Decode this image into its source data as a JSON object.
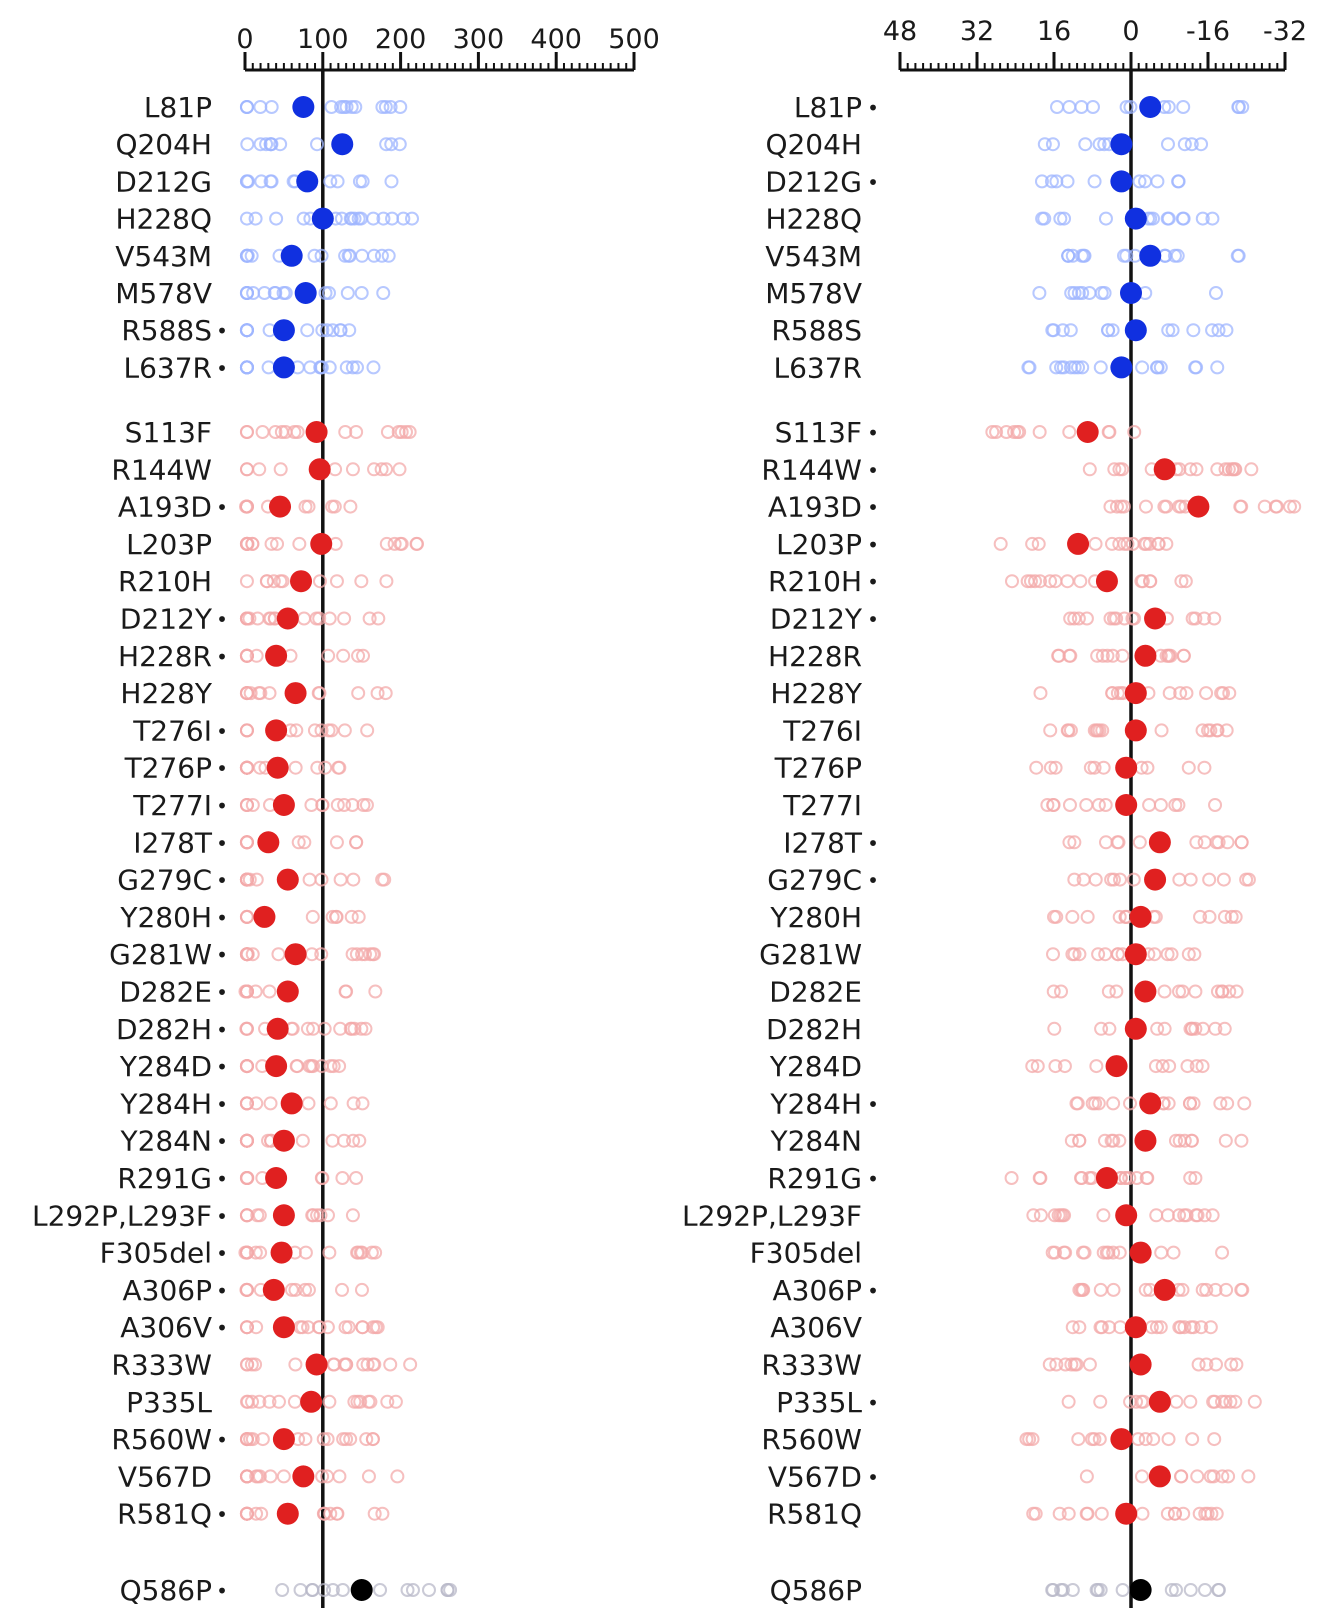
{
  "chart_data": [
    {
      "type": "scatter",
      "orientation": "horizontal",
      "x_ticks": [
        0,
        100,
        200,
        300,
        400,
        500
      ],
      "xlim": [
        0,
        500
      ],
      "reference_value": 100,
      "point_colors": {
        "benign": "#1030e0",
        "pathogenic": "#e02020",
        "control": "#000000"
      },
      "rows": [
        {
          "label": "L81P",
          "star": false,
          "value": 75,
          "group": "benign"
        },
        {
          "label": "Q204H",
          "star": false,
          "value": 125,
          "group": "benign"
        },
        {
          "label": "D212G",
          "star": false,
          "value": 80,
          "group": "benign"
        },
        {
          "label": "H228Q",
          "star": false,
          "value": 100,
          "group": "benign"
        },
        {
          "label": "V543M",
          "star": false,
          "value": 60,
          "group": "benign"
        },
        {
          "label": "M578V",
          "star": false,
          "value": 78,
          "group": "benign"
        },
        {
          "label": "R588S",
          "star": true,
          "value": 50,
          "group": "benign"
        },
        {
          "label": "L637R",
          "star": true,
          "value": 50,
          "group": "benign"
        },
        {
          "label": "S113F",
          "star": false,
          "value": 92,
          "group": "pathogenic"
        },
        {
          "label": "R144W",
          "star": false,
          "value": 96,
          "group": "pathogenic"
        },
        {
          "label": "A193D",
          "star": true,
          "value": 45,
          "group": "pathogenic"
        },
        {
          "label": "L203P",
          "star": false,
          "value": 98,
          "group": "pathogenic"
        },
        {
          "label": "R210H",
          "star": false,
          "value": 72,
          "group": "pathogenic"
        },
        {
          "label": "D212Y",
          "star": true,
          "value": 55,
          "group": "pathogenic"
        },
        {
          "label": "H228R",
          "star": true,
          "value": 40,
          "group": "pathogenic"
        },
        {
          "label": "H228Y",
          "star": false,
          "value": 65,
          "group": "pathogenic"
        },
        {
          "label": "T276I",
          "star": true,
          "value": 40,
          "group": "pathogenic"
        },
        {
          "label": "T276P",
          "star": true,
          "value": 42,
          "group": "pathogenic"
        },
        {
          "label": "T277I",
          "star": true,
          "value": 50,
          "group": "pathogenic"
        },
        {
          "label": "I278T",
          "star": true,
          "value": 30,
          "group": "pathogenic"
        },
        {
          "label": "G279C",
          "star": true,
          "value": 55,
          "group": "pathogenic"
        },
        {
          "label": "Y280H",
          "star": true,
          "value": 25,
          "group": "pathogenic"
        },
        {
          "label": "G281W",
          "star": true,
          "value": 65,
          "group": "pathogenic"
        },
        {
          "label": "D282E",
          "star": true,
          "value": 55,
          "group": "pathogenic"
        },
        {
          "label": "D282H",
          "star": true,
          "value": 42,
          "group": "pathogenic"
        },
        {
          "label": "Y284D",
          "star": true,
          "value": 40,
          "group": "pathogenic"
        },
        {
          "label": "Y284H",
          "star": true,
          "value": 60,
          "group": "pathogenic"
        },
        {
          "label": "Y284N",
          "star": true,
          "value": 50,
          "group": "pathogenic"
        },
        {
          "label": "R291G",
          "star": true,
          "value": 40,
          "group": "pathogenic"
        },
        {
          "label": "L292P,L293F",
          "star": true,
          "value": 50,
          "group": "pathogenic"
        },
        {
          "label": "F305del",
          "star": true,
          "value": 47,
          "group": "pathogenic"
        },
        {
          "label": "A306P",
          "star": true,
          "value": 37,
          "group": "pathogenic"
        },
        {
          "label": "A306V",
          "star": true,
          "value": 50,
          "group": "pathogenic"
        },
        {
          "label": "R333W",
          "star": false,
          "value": 92,
          "group": "pathogenic"
        },
        {
          "label": "P335L",
          "star": false,
          "value": 85,
          "group": "pathogenic"
        },
        {
          "label": "R560W",
          "star": true,
          "value": 50,
          "group": "pathogenic"
        },
        {
          "label": "V567D",
          "star": false,
          "value": 75,
          "group": "pathogenic"
        },
        {
          "label": "R581Q",
          "star": true,
          "value": 55,
          "group": "pathogenic"
        },
        {
          "label": "Q586P",
          "star": true,
          "value": 150,
          "group": "control"
        }
      ]
    },
    {
      "type": "scatter",
      "orientation": "horizontal",
      "x_ticks": [
        48,
        32,
        16,
        0,
        -16,
        -32
      ],
      "xlim": [
        48,
        -32
      ],
      "reference_value": 0,
      "point_colors": {
        "benign": "#1030e0",
        "pathogenic": "#e02020",
        "control": "#000000"
      },
      "rows": [
        {
          "label": "L81P",
          "star": true,
          "value": -4,
          "group": "benign"
        },
        {
          "label": "Q204H",
          "star": false,
          "value": 2,
          "group": "benign"
        },
        {
          "label": "D212G",
          "star": true,
          "value": 2,
          "group": "benign"
        },
        {
          "label": "H228Q",
          "star": false,
          "value": -1,
          "group": "benign"
        },
        {
          "label": "V543M",
          "star": false,
          "value": -4,
          "group": "benign"
        },
        {
          "label": "M578V",
          "star": false,
          "value": 0,
          "group": "benign"
        },
        {
          "label": "R588S",
          "star": false,
          "value": -1,
          "group": "benign"
        },
        {
          "label": "L637R",
          "star": false,
          "value": 2,
          "group": "benign"
        },
        {
          "label": "S113F",
          "star": true,
          "value": 9,
          "group": "pathogenic"
        },
        {
          "label": "R144W",
          "star": true,
          "value": -7,
          "group": "pathogenic"
        },
        {
          "label": "A193D",
          "star": true,
          "value": -14,
          "group": "pathogenic"
        },
        {
          "label": "L203P",
          "star": true,
          "value": 11,
          "group": "pathogenic"
        },
        {
          "label": "R210H",
          "star": true,
          "value": 5,
          "group": "pathogenic"
        },
        {
          "label": "D212Y",
          "star": true,
          "value": -5,
          "group": "pathogenic"
        },
        {
          "label": "H228R",
          "star": false,
          "value": -3,
          "group": "pathogenic"
        },
        {
          "label": "H228Y",
          "star": false,
          "value": -1,
          "group": "pathogenic"
        },
        {
          "label": "T276I",
          "star": false,
          "value": -1,
          "group": "pathogenic"
        },
        {
          "label": "T276P",
          "star": false,
          "value": 1,
          "group": "pathogenic"
        },
        {
          "label": "T277I",
          "star": false,
          "value": 1,
          "group": "pathogenic"
        },
        {
          "label": "I278T",
          "star": true,
          "value": -6,
          "group": "pathogenic"
        },
        {
          "label": "G279C",
          "star": true,
          "value": -5,
          "group": "pathogenic"
        },
        {
          "label": "Y280H",
          "star": false,
          "value": -2,
          "group": "pathogenic"
        },
        {
          "label": "G281W",
          "star": false,
          "value": -1,
          "group": "pathogenic"
        },
        {
          "label": "D282E",
          "star": false,
          "value": -3,
          "group": "pathogenic"
        },
        {
          "label": "D282H",
          "star": false,
          "value": -1,
          "group": "pathogenic"
        },
        {
          "label": "Y284D",
          "star": false,
          "value": 3,
          "group": "pathogenic"
        },
        {
          "label": "Y284H",
          "star": true,
          "value": -4,
          "group": "pathogenic"
        },
        {
          "label": "Y284N",
          "star": false,
          "value": -3,
          "group": "pathogenic"
        },
        {
          "label": "R291G",
          "star": true,
          "value": 5,
          "group": "pathogenic"
        },
        {
          "label": "L292P,L293F",
          "star": false,
          "value": 1,
          "group": "pathogenic"
        },
        {
          "label": "F305del",
          "star": false,
          "value": -2,
          "group": "pathogenic"
        },
        {
          "label": "A306P",
          "star": true,
          "value": -7,
          "group": "pathogenic"
        },
        {
          "label": "A306V",
          "star": false,
          "value": -1,
          "group": "pathogenic"
        },
        {
          "label": "R333W",
          "star": false,
          "value": -2,
          "group": "pathogenic"
        },
        {
          "label": "P335L",
          "star": true,
          "value": -6,
          "group": "pathogenic"
        },
        {
          "label": "R560W",
          "star": false,
          "value": 2,
          "group": "pathogenic"
        },
        {
          "label": "V567D",
          "star": true,
          "value": -6,
          "group": "pathogenic"
        },
        {
          "label": "R581Q",
          "star": false,
          "value": 1,
          "group": "pathogenic"
        },
        {
          "label": "Q586P",
          "star": false,
          "value": -2,
          "group": "control"
        }
      ]
    }
  ]
}
